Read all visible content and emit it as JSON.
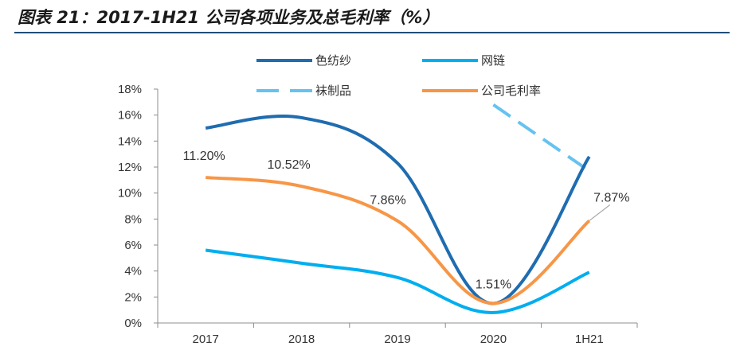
{
  "header": {
    "title": "图表 21：2017-1H21 公司各项业务及总毛利率（%）"
  },
  "chart_data": {
    "type": "line",
    "title": "2017-1H21 公司各项业务及总毛利率（%）",
    "categories": [
      "2017",
      "2018",
      "2019",
      "2020",
      "1H21"
    ],
    "ylim": [
      0,
      18
    ],
    "yticks": [
      "0%",
      "2%",
      "4%",
      "6%",
      "8%",
      "10%",
      "12%",
      "14%",
      "16%",
      "18%"
    ],
    "series": [
      {
        "name": "色纺纱",
        "color": "#1f6cb0",
        "dashed": false,
        "values": [
          15.0,
          15.8,
          12.3,
          1.5,
          12.8
        ]
      },
      {
        "name": "网链",
        "color": "#00aeef",
        "dashed": false,
        "values": [
          5.6,
          4.6,
          3.5,
          0.8,
          3.9
        ]
      },
      {
        "name": "袜制品",
        "color": "#66c2f0",
        "dashed": true,
        "values": [
          null,
          null,
          null,
          16.8,
          11.7
        ]
      },
      {
        "name": "公司毛利率",
        "color": "#f79646",
        "dashed": false,
        "values": [
          11.2,
          10.52,
          7.86,
          1.51,
          7.87
        ]
      }
    ],
    "data_labels": [
      {
        "series": "公司毛利率",
        "index": 0,
        "text": "11.20%"
      },
      {
        "series": "公司毛利率",
        "index": 1,
        "text": "10.52%"
      },
      {
        "series": "公司毛利率",
        "index": 2,
        "text": "7.86%"
      },
      {
        "series": "公司毛利率",
        "index": 3,
        "text": "1.51%"
      },
      {
        "series": "公司毛利率",
        "index": 4,
        "text": "7.87%"
      }
    ],
    "legend": "top"
  }
}
